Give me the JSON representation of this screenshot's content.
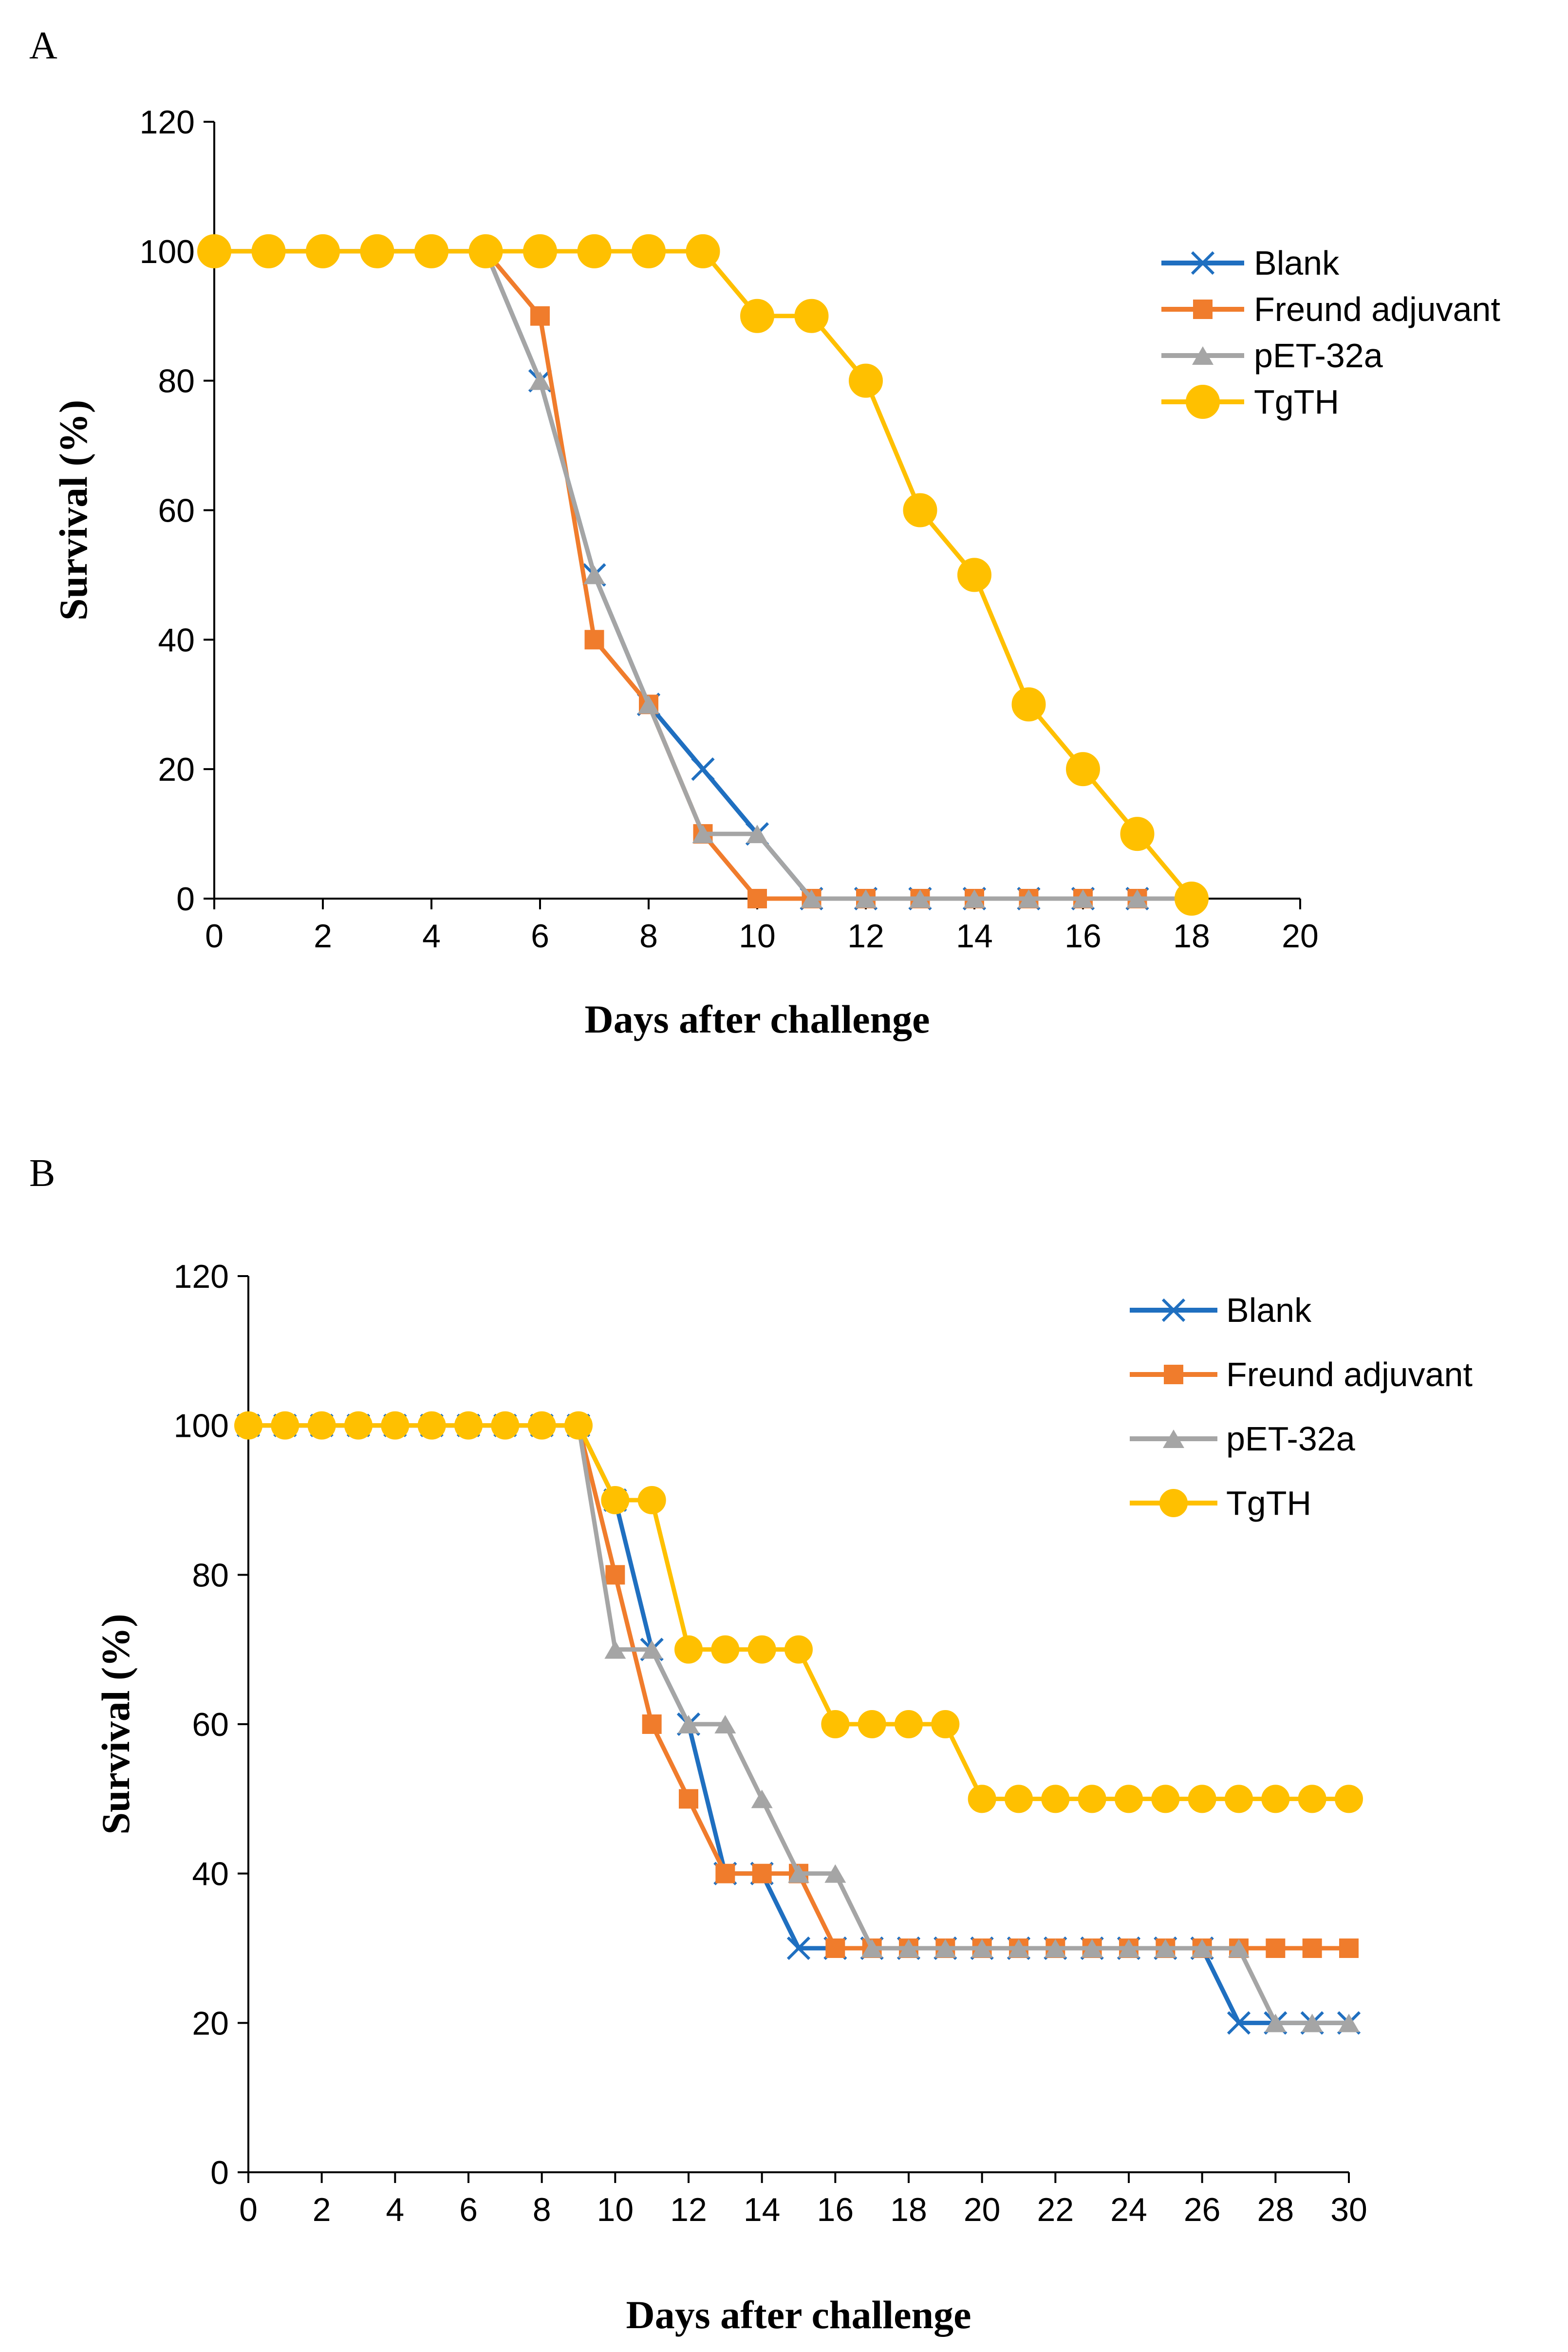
{
  "chart_data": [
    {
      "panel": "A",
      "type": "line",
      "title": "",
      "xlabel": "Days  after challenge",
      "ylabel": "Survival (%)",
      "xlim": [
        0,
        20
      ],
      "ylim": [
        0,
        120
      ],
      "xticks": [
        0,
        2,
        4,
        6,
        8,
        10,
        12,
        14,
        16,
        18,
        20
      ],
      "yticks": [
        0,
        20,
        40,
        60,
        80,
        100,
        120
      ],
      "grid": false,
      "legend_position": "top-right",
      "x": [
        0,
        1,
        2,
        3,
        4,
        5,
        6,
        7,
        8,
        9,
        10,
        11,
        12,
        13,
        14,
        15,
        16,
        17,
        18
      ],
      "series": [
        {
          "name": "Blank",
          "color": "#1f6fc0",
          "marker": "x",
          "values": [
            100,
            100,
            100,
            100,
            100,
            100,
            80,
            50,
            30,
            20,
            10,
            0,
            0,
            0,
            0,
            0,
            0,
            0,
            0
          ]
        },
        {
          "name": "Freund adjuvant",
          "color": "#f07c2c",
          "marker": "square",
          "values": [
            100,
            100,
            100,
            100,
            100,
            100,
            90,
            40,
            30,
            10,
            0,
            0,
            0,
            0,
            0,
            0,
            0,
            0,
            0
          ]
        },
        {
          "name": " pET-32a",
          "color": "#a5a5a5",
          "marker": "triangle",
          "values": [
            100,
            100,
            100,
            100,
            100,
            100,
            80,
            50,
            30,
            10,
            10,
            0,
            0,
            0,
            0,
            0,
            0,
            0,
            0
          ]
        },
        {
          "name": "TgTH",
          "color": "#ffc000",
          "marker": "circle",
          "values": [
            100,
            100,
            100,
            100,
            100,
            100,
            100,
            100,
            100,
            100,
            90,
            90,
            80,
            60,
            50,
            30,
            20,
            10,
            0
          ]
        }
      ]
    },
    {
      "panel": "B",
      "type": "line",
      "title": "",
      "xlabel": "Days  after challenge",
      "ylabel": "Survival (%)",
      "xlim": [
        0,
        30
      ],
      "ylim": [
        0,
        120
      ],
      "xticks": [
        0,
        2,
        4,
        6,
        8,
        10,
        12,
        14,
        16,
        18,
        20,
        22,
        24,
        26,
        28,
        30
      ],
      "yticks": [
        0,
        20,
        40,
        60,
        80,
        100,
        120
      ],
      "grid": false,
      "legend_position": "top-right",
      "x": [
        0,
        1,
        2,
        3,
        4,
        5,
        6,
        7,
        8,
        9,
        10,
        11,
        12,
        13,
        14,
        15,
        16,
        17,
        18,
        19,
        20,
        21,
        22,
        23,
        24,
        25,
        26,
        27,
        28,
        29,
        30
      ],
      "series": [
        {
          "name": "Blank",
          "color": "#1f6fc0",
          "marker": "x",
          "values": [
            100,
            100,
            100,
            100,
            100,
            100,
            100,
            100,
            100,
            100,
            90,
            70,
            60,
            40,
            40,
            30,
            30,
            30,
            30,
            30,
            30,
            30,
            30,
            30,
            30,
            30,
            30,
            20,
            20,
            20,
            20
          ]
        },
        {
          "name": "Freund adjuvant",
          "color": "#f07c2c",
          "marker": "square",
          "values": [
            100,
            100,
            100,
            100,
            100,
            100,
            100,
            100,
            100,
            100,
            80,
            60,
            50,
            40,
            40,
            40,
            30,
            30,
            30,
            30,
            30,
            30,
            30,
            30,
            30,
            30,
            30,
            30,
            30,
            30,
            30
          ]
        },
        {
          "name": " pET-32a",
          "color": "#a5a5a5",
          "marker": "triangle",
          "values": [
            100,
            100,
            100,
            100,
            100,
            100,
            100,
            100,
            100,
            100,
            70,
            70,
            60,
            60,
            50,
            40,
            40,
            30,
            30,
            30,
            30,
            30,
            30,
            30,
            30,
            30,
            30,
            30,
            20,
            20,
            20
          ]
        },
        {
          "name": "TgTH",
          "color": "#ffc000",
          "marker": "circle",
          "values": [
            100,
            100,
            100,
            100,
            100,
            100,
            100,
            100,
            100,
            100,
            90,
            90,
            70,
            70,
            70,
            70,
            60,
            60,
            60,
            60,
            50,
            50,
            50,
            50,
            50,
            50,
            50,
            50,
            50,
            50,
            50
          ]
        }
      ]
    }
  ]
}
